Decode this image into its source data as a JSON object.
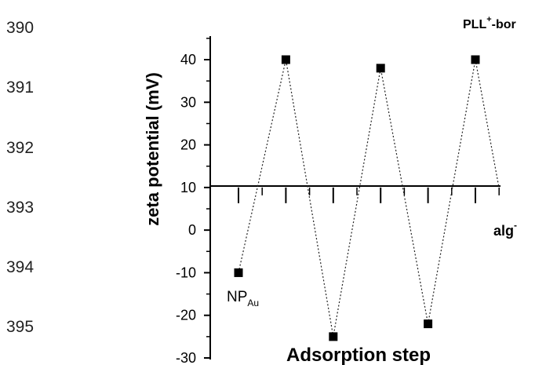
{
  "line_numbers": [
    "390",
    "391",
    "392",
    "393",
    "394",
    "395"
  ],
  "chart_data": {
    "type": "scatter",
    "xlabel": "Adsorption step",
    "ylabel": "zeta potential (mV)",
    "ylim": [
      -30,
      45
    ],
    "yticks": [
      -30,
      -20,
      -10,
      0,
      10,
      20,
      30,
      40
    ],
    "x": [
      1,
      2,
      3,
      4,
      5,
      6
    ],
    "y": [
      -10,
      40,
      -25,
      38,
      -22,
      40
    ],
    "line_style": "dotted",
    "marker": "square",
    "grid": false,
    "annotations": {
      "np_main": "NP",
      "np_sub": "Au",
      "pll_main": "PLL",
      "pll_sup": "+",
      "pll_tail": "-bor",
      "alg_main": "alg",
      "alg_sup": "-"
    }
  }
}
